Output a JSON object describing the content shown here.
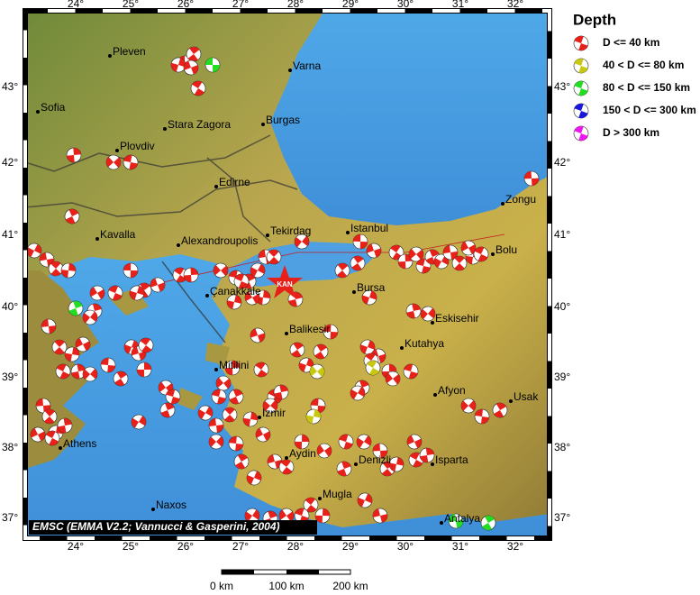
{
  "map": {
    "lon_labels": [
      "24°",
      "25°",
      "26°",
      "27°",
      "28°",
      "29°",
      "30°",
      "31°",
      "32°"
    ],
    "lat_labels": [
      "43°",
      "42°",
      "41°",
      "40°",
      "39°",
      "38°",
      "37°"
    ],
    "cities": [
      "Pleven",
      "Varna",
      "Sofia",
      "Stara Zagora",
      "Burgas",
      "Plovdiv",
      "Edirne",
      "Zongu",
      "Kavalla",
      "Alexandroupolis",
      "Tekirdag",
      "Istanbul",
      "Bolu",
      "Çanakkale",
      "Bursa",
      "Eskisehir",
      "Balikesir",
      "Kutahya",
      "Mitilini",
      "Izmir",
      "Afyon",
      "Usak",
      "Athens",
      "Aydin",
      "Denizli",
      "Isparta",
      "Naxos",
      "Mugla",
      "Antalya"
    ],
    "event_label": "KAN",
    "credit": "EMSC (EMMA V2.2; Vannucci & Gasperini, 2004)",
    "scale_labels": [
      "0 km",
      "100 km",
      "200 km"
    ]
  },
  "legend": {
    "title": "Depth",
    "entries": [
      {
        "label": "D <= 40 km",
        "color": "#e8201a"
      },
      {
        "label": "40 < D <= 80 km",
        "color": "#c8c810"
      },
      {
        "label": "80 < D <= 150 km",
        "color": "#22dd22"
      },
      {
        "label": "150 < D <= 300 km",
        "color": "#1818dd"
      },
      {
        "label": "D > 300 km",
        "color": "#ee18ee"
      }
    ]
  }
}
